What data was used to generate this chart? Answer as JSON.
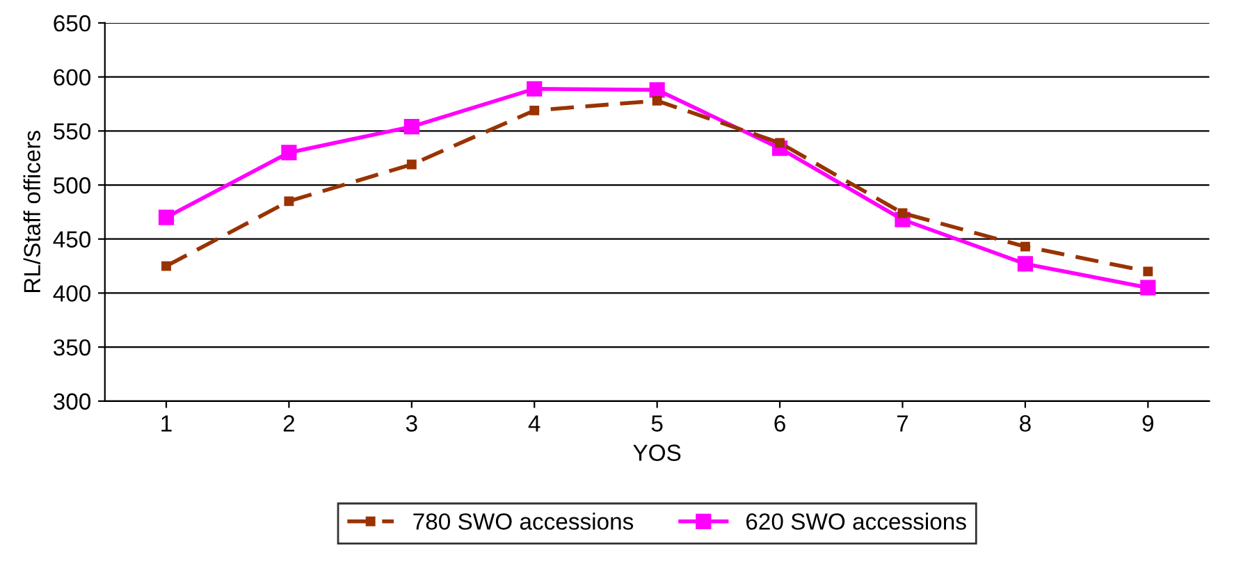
{
  "chart_data": {
    "type": "line",
    "xlabel": "YOS",
    "ylabel": "RL/Staff officers",
    "categories": [
      "1",
      "2",
      "3",
      "4",
      "5",
      "6",
      "7",
      "8",
      "9"
    ],
    "series": [
      {
        "name": "780 SWO accessions",
        "color": "#993300",
        "line_style": "dashed",
        "marker": "square",
        "values": [
          425,
          485,
          519,
          569,
          578,
          539,
          474,
          443,
          420
        ]
      },
      {
        "name": "620 SWO accessions",
        "color": "#ff00ff",
        "line_style": "solid",
        "marker": "square",
        "values": [
          470,
          530,
          554,
          589,
          588,
          534,
          468,
          427,
          405
        ]
      }
    ],
    "ylim": [
      300,
      650
    ],
    "yticks": [
      300,
      350,
      400,
      450,
      500,
      550,
      600,
      650
    ],
    "grid": "y",
    "legend": "bottom"
  }
}
